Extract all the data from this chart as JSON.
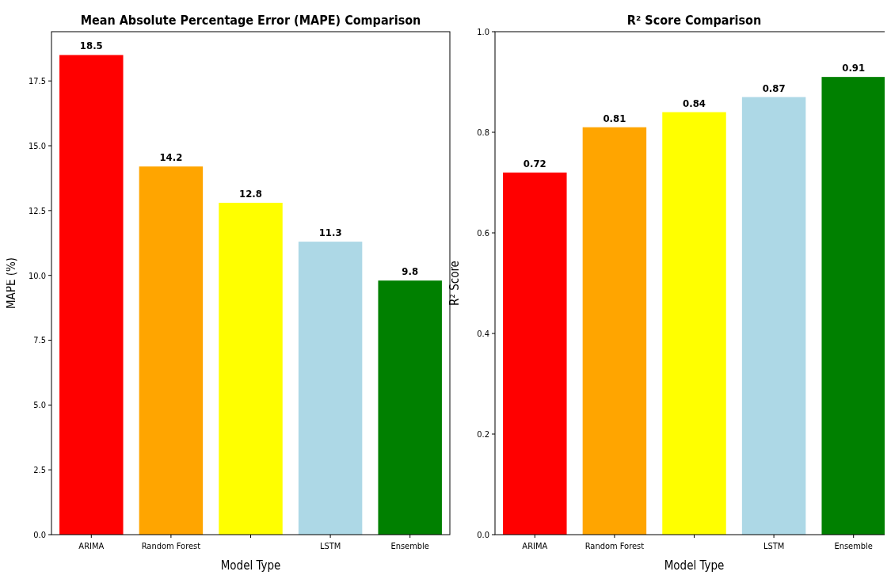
{
  "chart_data": [
    {
      "type": "bar",
      "title": "Mean Absolute Percentage Error (MAPE) Comparison",
      "xlabel": "Model Type",
      "ylabel": "MAPE (%)",
      "categories": [
        "ARIMA",
        "Random Forest",
        null,
        "LSTM",
        "Ensemble"
      ],
      "values": [
        18.5,
        14.2,
        12.8,
        11.3,
        9.8
      ],
      "colors": [
        "#ff0000",
        "#ffa500",
        "#ffff00",
        "#add8e6",
        "#008000"
      ],
      "ylim": [
        0,
        19.4
      ],
      "yticks": [
        {
          "value": 0,
          "label": "0.0"
        },
        2.5,
        {
          "value": 5,
          "label": "5.0"
        },
        7.5,
        {
          "value": 10,
          "label": "10.0"
        },
        12.5,
        {
          "value": 15,
          "label": "15.0"
        },
        17.5
      ],
      "data_labels": true,
      "grid": false
    },
    {
      "type": "bar",
      "title": "R² Score Comparison",
      "xlabel": "Model Type",
      "ylabel": "R² Score",
      "categories": [
        "ARIMA",
        "Random Forest",
        null,
        "LSTM",
        "Ensemble"
      ],
      "values": [
        0.72,
        0.81,
        0.84,
        0.87,
        0.91
      ],
      "colors": [
        "#ff0000",
        "#ffa500",
        "#ffff00",
        "#add8e6",
        "#008000"
      ],
      "ylim": [
        0,
        1
      ],
      "yticks": [
        {
          "value": 0,
          "label": "0.0"
        },
        0.2,
        0.4,
        0.6,
        0.8,
        {
          "value": 1,
          "label": "1.0"
        }
      ],
      "data_labels": true,
      "grid": false
    }
  ]
}
